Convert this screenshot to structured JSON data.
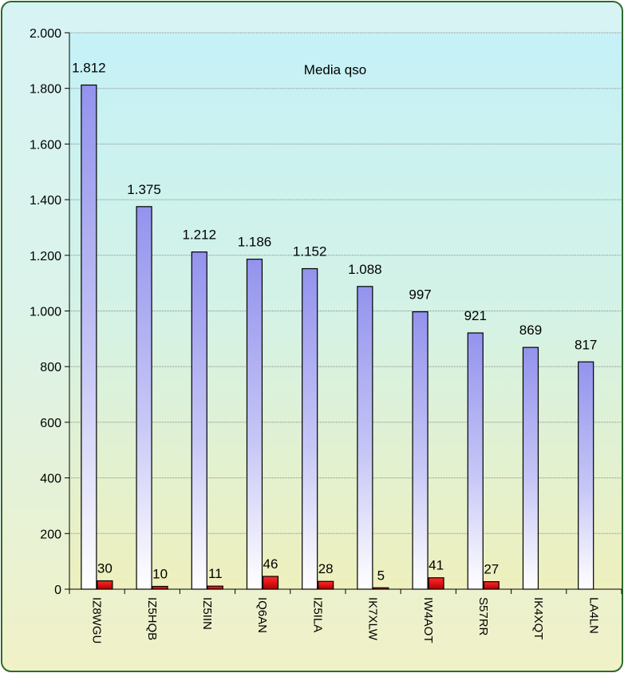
{
  "chart_data": {
    "type": "bar",
    "title": "Media qso",
    "xlabel": "",
    "ylabel": "",
    "ylim": [
      0,
      2000
    ],
    "yticks": [
      0,
      200,
      400,
      600,
      800,
      1000,
      1200,
      1400,
      1600,
      1800,
      2000
    ],
    "ytick_labels": [
      "0",
      "200",
      "400",
      "600",
      "800",
      "1.000",
      "1.200",
      "1.400",
      "1.600",
      "1.800",
      "2.000"
    ],
    "categories": [
      "IZ8WGU",
      "IZ5HQB",
      "IZ5IIN",
      "IQ6AN",
      "IZ5ILA",
      "IK7XLW",
      "IW4AOT",
      "S57RR",
      "IK4XQT",
      "LA4LN"
    ],
    "series": [
      {
        "values": [
          1812,
          1375,
          1212,
          1186,
          1152,
          1088,
          997,
          921,
          869,
          817
        ],
        "labels": [
          "1.812",
          "1.375",
          "1.212",
          "1.186",
          "1.152",
          "1.088",
          "997",
          "921",
          "869",
          "817"
        ],
        "color": "#9b9bf0"
      },
      {
        "values": [
          30,
          10,
          11,
          46,
          28,
          5,
          41,
          27,
          null,
          null
        ],
        "labels": [
          "30",
          "10",
          "11",
          "46",
          "28",
          "5",
          "41",
          "27",
          "",
          ""
        ],
        "color": "#e00000"
      }
    ],
    "grid": true,
    "legend": "none",
    "colors": {
      "frame_border": "#2e6b2e",
      "gradient_top": "#c9f2f6",
      "gradient_bottom": "#eef0c0"
    }
  }
}
